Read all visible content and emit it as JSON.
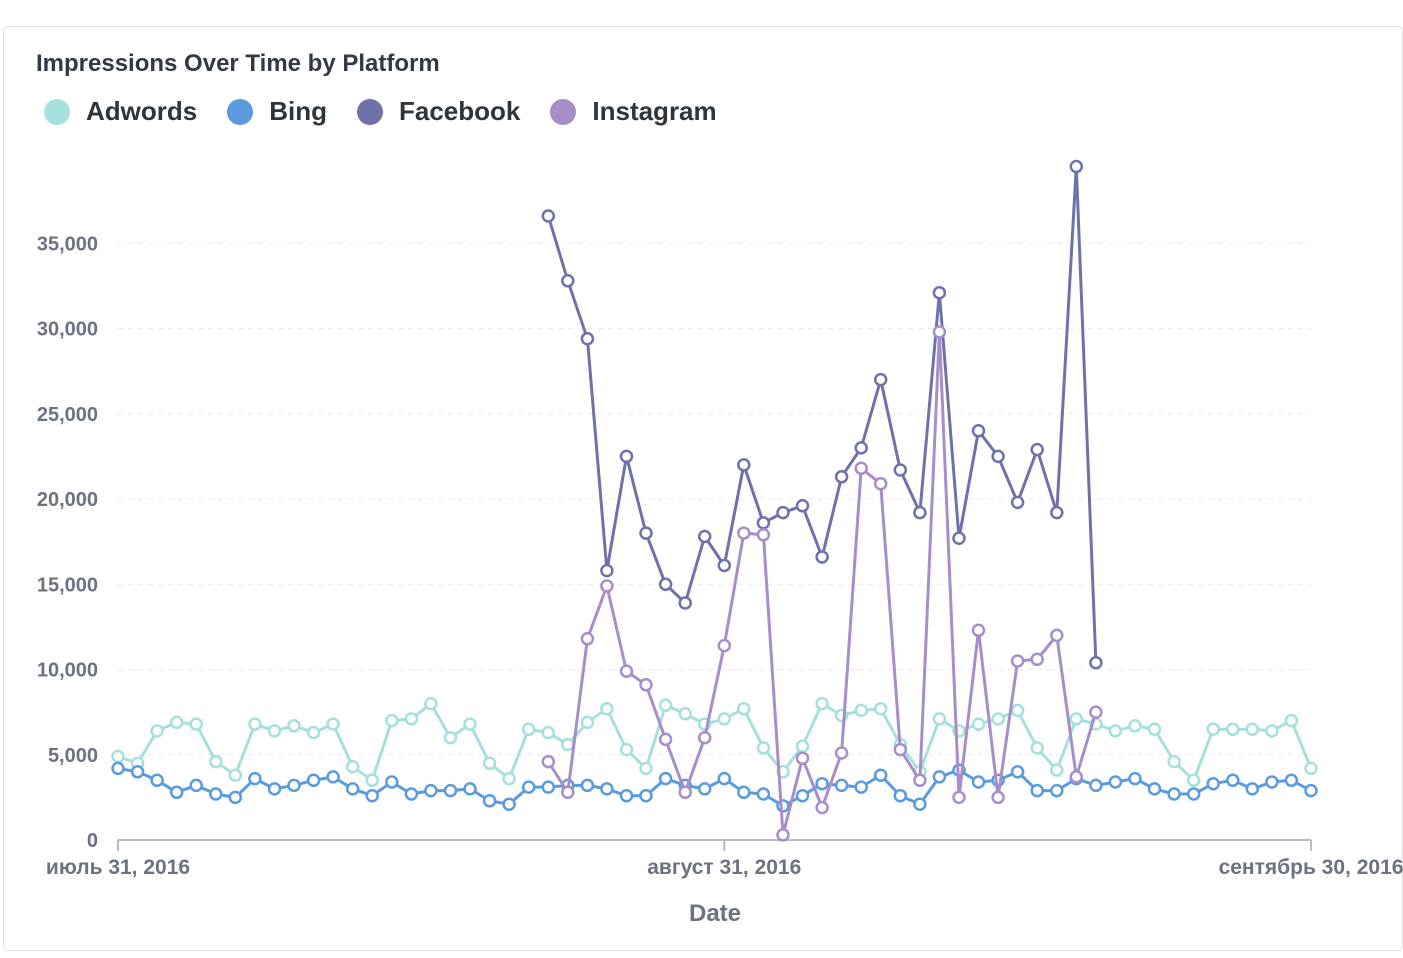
{
  "chart_data": {
    "type": "line",
    "title": "Impressions Over Time by Platform",
    "xlabel": "Date",
    "ylabel": "",
    "ylim": [
      0,
      40000
    ],
    "yticks": [
      0,
      5000,
      10000,
      15000,
      20000,
      25000,
      30000,
      35000
    ],
    "ytick_labels": [
      "0",
      "5,000",
      "10,000",
      "15,000",
      "20,000",
      "25,000",
      "30,000",
      "35,000"
    ],
    "x_range": [
      "2016-07-31",
      "2016-09-30"
    ],
    "xticks": [
      {
        "date": "2016-07-31",
        "label": "июль 31, 2016"
      },
      {
        "date": "2016-08-31",
        "label": "август 31, 2016"
      },
      {
        "date": "2016-09-30",
        "label": "сентябрь 30, 2016"
      }
    ],
    "grid": true,
    "legend_position": "top-left",
    "series": [
      {
        "name": "Adwords",
        "color": "#a6e0dc",
        "start_date": "2016-07-31",
        "values": [
          4900,
          4500,
          6400,
          6900,
          6800,
          4600,
          3800,
          6800,
          6400,
          6700,
          6300,
          6800,
          4300,
          3500,
          7000,
          7100,
          8000,
          6000,
          6800,
          4500,
          3600,
          6500,
          6300,
          5600,
          6900,
          7700,
          5300,
          4200,
          7900,
          7400,
          6800,
          7100,
          7700,
          5400,
          4000,
          5500,
          8000,
          7300,
          7600,
          7700,
          5600,
          4000,
          7100,
          6400,
          6800,
          7100,
          7600,
          5400,
          4100,
          7100,
          6800,
          6400,
          6700,
          6500,
          4600,
          3500,
          6500,
          6500,
          6500,
          6400,
          7000,
          4200
        ]
      },
      {
        "name": "Bing",
        "color": "#5a9be0",
        "start_date": "2016-07-31",
        "values": [
          4200,
          4000,
          3500,
          2800,
          3200,
          2700,
          2500,
          3600,
          3000,
          3200,
          3500,
          3700,
          3000,
          2600,
          3400,
          2700,
          2900,
          2900,
          3000,
          2300,
          2100,
          3100,
          3100,
          3200,
          3200,
          3000,
          2600,
          2600,
          3600,
          3200,
          3000,
          3600,
          2800,
          2700,
          2000,
          2600,
          3300,
          3200,
          3100,
          3800,
          2600,
          2100,
          3700,
          4100,
          3400,
          3500,
          4000,
          2900,
          2900,
          3600,
          3200,
          3400,
          3600,
          3000,
          2700,
          2700,
          3300,
          3500,
          3000,
          3400,
          3500,
          2900
        ]
      },
      {
        "name": "Facebook",
        "color": "#6e72aa",
        "start_date": "2016-08-22",
        "values": [
          36600,
          32800,
          29400,
          15800,
          22500,
          18000,
          15000,
          13900,
          17800,
          16100,
          22000,
          18600,
          19200,
          19600,
          16600,
          21300,
          23000,
          27000,
          21700,
          19200,
          32100,
          17700,
          24000,
          22500,
          19800,
          22900,
          19200,
          39500,
          10400
        ]
      },
      {
        "name": "Instagram",
        "color": "#a88ec9",
        "start_date": "2016-08-22",
        "values": [
          4600,
          2800,
          11800,
          14900,
          9900,
          9100,
          5900,
          2800,
          6000,
          11400,
          18000,
          17900,
          300,
          4800,
          1900,
          5100,
          21800,
          20900,
          5300,
          3500,
          29800,
          2500,
          12300,
          2500,
          10500,
          10600,
          12000,
          3700,
          7500
        ]
      }
    ]
  }
}
